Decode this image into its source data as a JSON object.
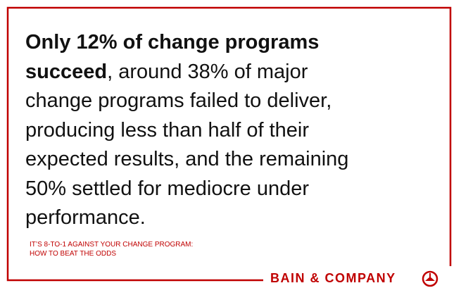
{
  "quote": {
    "lines": [
      {
        "bold": "Only 12% of change programs"
      },
      {
        "bold": "succeed",
        "text": ", around 38% of major"
      },
      {
        "text": "change programs failed to deliver,"
      },
      {
        "text": "producing less than half of their"
      },
      {
        "text": "expected results, and the remaining"
      },
      {
        "text": "50% settled for mediocre under"
      },
      {
        "text": "performance."
      }
    ]
  },
  "source": [
    "IT’S 8-TO-1 AGAINST YOUR CHANGE PROGRAM:",
    "HOW TO BEAT THE ODDS"
  ],
  "logo": "BAIN & COMPANY"
}
